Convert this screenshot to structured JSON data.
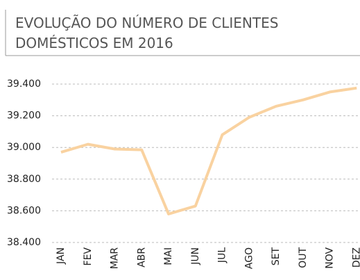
{
  "chart_data": {
    "type": "line",
    "title": [
      "EVOLUÇÃO DO NÚMERO DE CLIENTES",
      "DOMÉSTICOS EM 2016"
    ],
    "categories": [
      "JAN",
      "FEV",
      "MAR",
      "ABR",
      "MAI",
      "JUN",
      "JUL",
      "AGO",
      "SET",
      "OUT",
      "NOV",
      "DEZ"
    ],
    "series": [
      {
        "color": "#f9d2a0",
        "values": [
          38970,
          39020,
          38990,
          38985,
          38580,
          38630,
          39080,
          39190,
          39260,
          39300,
          39350,
          39375
        ]
      }
    ],
    "ylim": [
      38400,
      39400
    ],
    "yticks": [
      {
        "value": 38400,
        "label": "38.400"
      },
      {
        "value": 38600,
        "label": "38.600"
      },
      {
        "value": 38800,
        "label": "38.800"
      },
      {
        "value": 39000,
        "label": "39.000"
      },
      {
        "value": 39200,
        "label": "39.200"
      },
      {
        "value": 39400,
        "label": "39.400"
      }
    ],
    "grid": true
  }
}
